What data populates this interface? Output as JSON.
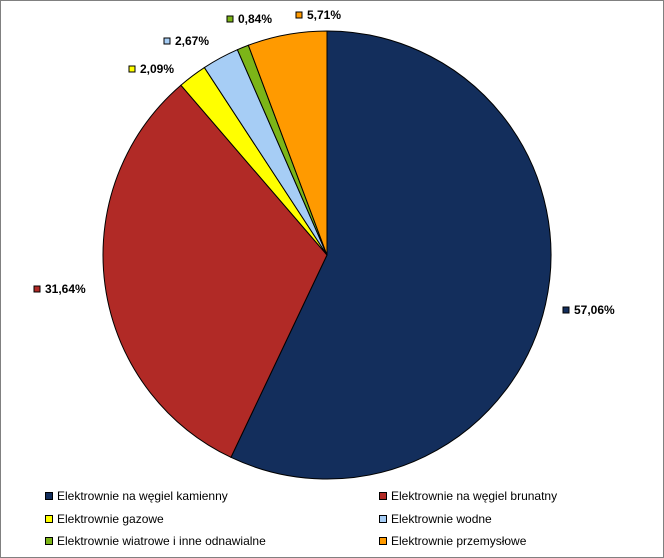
{
  "chart_data": {
    "type": "pie",
    "title": "",
    "categories": [
      "Elektrownie na węgiel kamienny",
      "Elektrownie na węgiel brunatny",
      "Elektrownie gazowe",
      "Elektrownie wodne",
      "Elektrownie wiatrowe i inne odnawialne",
      "Elektrownie  przemysłowe"
    ],
    "values": [
      57.06,
      31.64,
      2.09,
      2.67,
      0.84,
      5.71
    ],
    "value_labels": [
      "57,06%",
      "31,64%",
      "2,09%",
      "2,67%",
      "0,84%",
      "5,71%"
    ],
    "colors": [
      "#132E5C",
      "#B12A26",
      "#FFFF00",
      "#A6CDF5",
      "#7CB518",
      "#FF9A00"
    ],
    "start": "12 o'clock",
    "direction": "clockwise",
    "legend_position": "bottom"
  }
}
